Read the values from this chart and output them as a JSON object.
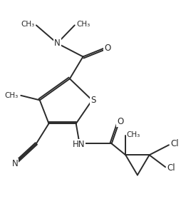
{
  "background_color": "#ffffff",
  "line_color": "#2a2a2a",
  "line_width": 1.4,
  "font_size": 8.5,
  "figsize": [
    2.55,
    2.93
  ],
  "dpi": 100,
  "xlim": [
    0,
    10
  ],
  "ylim": [
    0,
    11
  ]
}
